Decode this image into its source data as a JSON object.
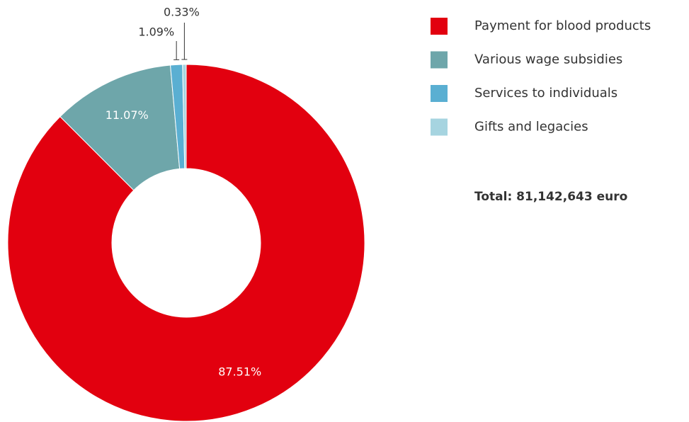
{
  "chart_data": {
    "type": "pie",
    "categories": [
      "Payment for blood products",
      "Various wage subsidies",
      "Services to individuals",
      "Gifts and legacies"
    ],
    "values": [
      87.51,
      11.07,
      1.09,
      0.33
    ],
    "value_labels": [
      "87.51%",
      "11.07%",
      "1.09%",
      "0.33%"
    ],
    "colors": [
      "#e2000f",
      "#6ea6aa",
      "#5aafd2",
      "#a6d4e0"
    ],
    "donut": true,
    "legend": "right",
    "annotation": "Total: 81,142,643 euro"
  }
}
